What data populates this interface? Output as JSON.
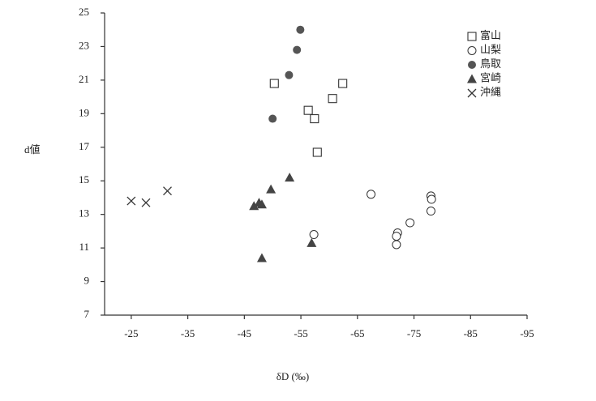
{
  "chart_data": {
    "type": "scatter",
    "x_label": "δD (‰)",
    "y_label": "d値",
    "xlim": [
      -20,
      -95
    ],
    "ylim": [
      7,
      25
    ],
    "xticks": [
      -25,
      -35,
      -45,
      -55,
      -65,
      -75,
      -85,
      -95
    ],
    "yticks": [
      7,
      9,
      11,
      13,
      15,
      17,
      19,
      21,
      23,
      25
    ],
    "legend": "top-right",
    "series": [
      {
        "name": "富山",
        "marker": "square",
        "color": "#333333",
        "x": [
          -50.3,
          -62.4,
          -60.6,
          -56.3,
          -57.4,
          -57.9
        ],
        "y": [
          20.8,
          20.8,
          19.9,
          19.2,
          18.7,
          16.7
        ]
      },
      {
        "name": "山梨",
        "marker": "circle-open",
        "color": "#333333",
        "x": [
          -67.4,
          -78,
          -78.1,
          -78,
          -74.3,
          -72.1,
          -71.9,
          -71.9,
          -57.3
        ],
        "y": [
          14.2,
          14.1,
          13.9,
          13.2,
          12.5,
          11.9,
          11.7,
          11.2,
          11.8
        ]
      },
      {
        "name": "鳥取",
        "marker": "circle-filled",
        "color": "#555555",
        "x": [
          -54.9,
          -54.3,
          -52.9,
          -50
        ],
        "y": [
          24.0,
          22.8,
          21.3,
          18.7
        ]
      },
      {
        "name": "宮崎",
        "marker": "triangle",
        "color": "#444444",
        "x": [
          -53,
          -49.7,
          -47.6,
          -46.7,
          -48.1,
          -56.9,
          -48.1
        ],
        "y": [
          15.2,
          14.5,
          13.7,
          13.5,
          13.6,
          11.3,
          10.4
        ]
      },
      {
        "name": "沖縄",
        "marker": "cross",
        "color": "#333333",
        "x": [
          -25,
          -27.6,
          -31.4
        ],
        "y": [
          13.8,
          13.7,
          14.4
        ]
      }
    ]
  }
}
